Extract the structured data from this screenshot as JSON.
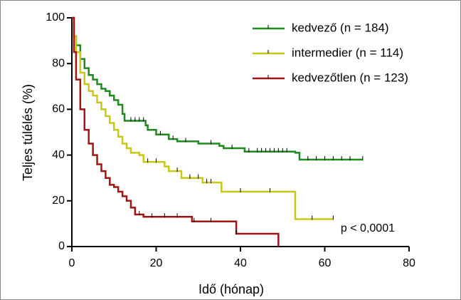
{
  "chart_data": {
    "type": "km",
    "x_label": "Idő (hónap)",
    "y_label": "Teljes túlélés (%)",
    "annotation": "p < 0,0001",
    "xlim": [
      0,
      80
    ],
    "xticks": [
      0,
      20,
      40,
      60,
      80
    ],
    "ylim": [
      0,
      100
    ],
    "yticks": [
      0,
      20,
      40,
      60,
      80,
      100
    ],
    "legend": "upper right",
    "series": [
      {
        "name": "kedvező (n = 184)",
        "color": "#1e8a1e",
        "x": [
          0,
          0.5,
          1,
          2,
          3,
          4,
          5,
          6,
          7,
          8,
          9,
          10,
          11,
          12,
          12.5,
          17.5,
          18,
          20,
          23,
          25,
          30,
          35,
          36,
          41,
          53,
          54,
          69
        ],
        "values": [
          100,
          92,
          88,
          82,
          78,
          75,
          73,
          71,
          69,
          68,
          66,
          64,
          62,
          58,
          55,
          53,
          51,
          49,
          47,
          46,
          45,
          44,
          43,
          41.5,
          41,
          38,
          38
        ],
        "censored": [
          14,
          15,
          16,
          17,
          21,
          24,
          27,
          33,
          38,
          42,
          44,
          45,
          46,
          47,
          48,
          49,
          50,
          51,
          56,
          58,
          60,
          62,
          64,
          66,
          69
        ]
      },
      {
        "name": "intermedier (n = 114)",
        "color": "#c8c814",
        "x": [
          0,
          0.5,
          1,
          2,
          3,
          4,
          5,
          6,
          7,
          8,
          9,
          10,
          11,
          12,
          13,
          14,
          16,
          17,
          22,
          23,
          26,
          31,
          35.5,
          53,
          62
        ],
        "values": [
          100,
          92,
          85,
          76,
          71,
          68,
          66,
          63,
          60,
          57,
          54,
          51,
          48,
          45,
          43,
          41,
          40,
          37,
          35,
          33,
          30,
          28,
          24,
          12,
          12
        ],
        "censored": [
          18,
          20,
          25,
          28,
          30,
          32,
          33,
          40,
          47,
          57,
          62
        ]
      },
      {
        "name": "kedvezőtlen (n = 123)",
        "color": "#a01414",
        "x": [
          0,
          0.5,
          1,
          2,
          3,
          4,
          5,
          6,
          7,
          8,
          9,
          10,
          11,
          12,
          13,
          14,
          15,
          17,
          28.5,
          39,
          49
        ],
        "values": [
          100,
          85,
          73,
          60,
          51,
          45,
          40,
          36,
          33,
          30,
          27,
          26,
          24,
          22,
          20,
          17,
          14,
          13,
          11,
          5.6,
          0
        ],
        "censored": [
          16,
          19,
          22,
          25,
          29,
          33,
          39
        ]
      }
    ]
  }
}
